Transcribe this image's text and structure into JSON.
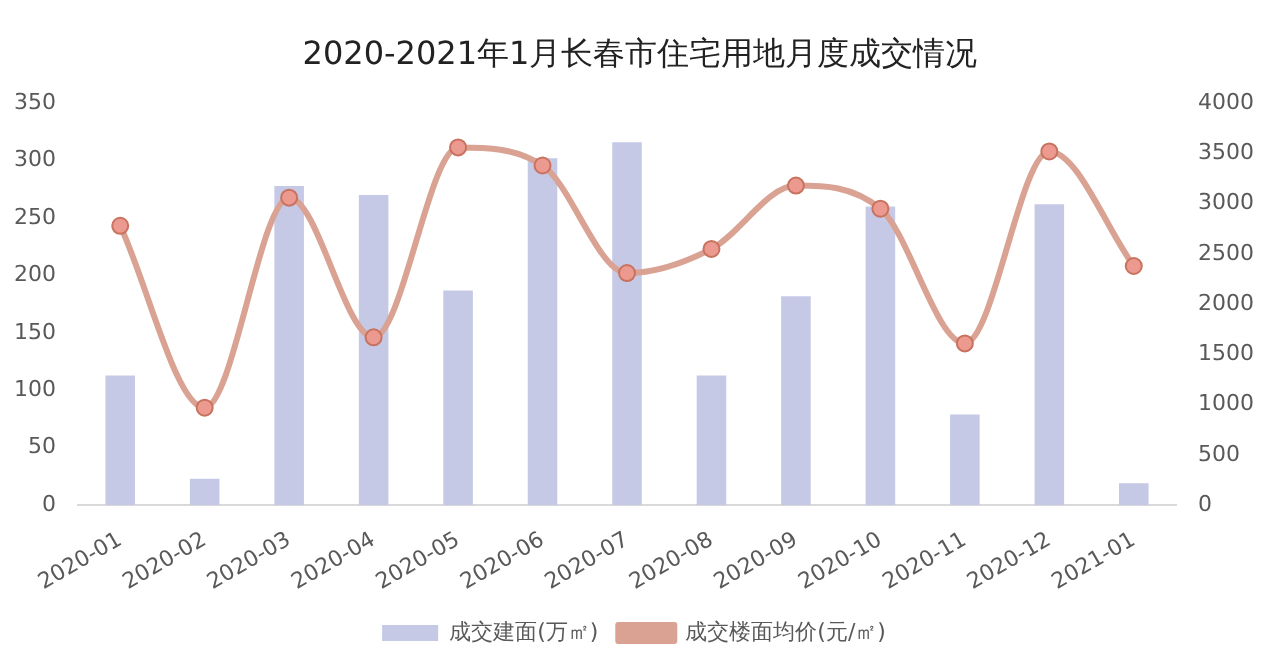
{
  "chart_data": {
    "type": "bar",
    "title": "2020-2021年1月长春市住宅用地月度成交情况",
    "categories": [
      "2020-01",
      "2020-02",
      "2020-03",
      "2020-04",
      "2020-05",
      "2020-06",
      "2020-07",
      "2020-08",
      "2020-09",
      "2020-10",
      "2020-11",
      "2020-12",
      "2021-01"
    ],
    "series": [
      {
        "name": "成交建面(万㎡)",
        "color": "#c5c9e6",
        "values": [
          113,
          23,
          278,
          270,
          187,
          302,
          316,
          113,
          182,
          260,
          79,
          262,
          19
        ]
      },
      {
        "name": "成交楼面均价(元/㎡)",
        "type": "line",
        "axis": "y2",
        "color": "#d9a293",
        "marker": "circle",
        "values": [
          2780,
          970,
          3060,
          1670,
          3560,
          3380,
          2310,
          2550,
          3180,
          2950,
          1610,
          3520,
          2380
        ]
      }
    ],
    "ylim": [
      0,
      350
    ],
    "yticks": [
      0,
      50,
      100,
      150,
      200,
      250,
      300,
      350
    ],
    "y2lim": [
      0,
      4000
    ],
    "y2ticks": [
      0,
      500,
      1000,
      1500,
      2000,
      2500,
      3000,
      3500,
      4000
    ],
    "grid": false,
    "legend": "bottom"
  }
}
